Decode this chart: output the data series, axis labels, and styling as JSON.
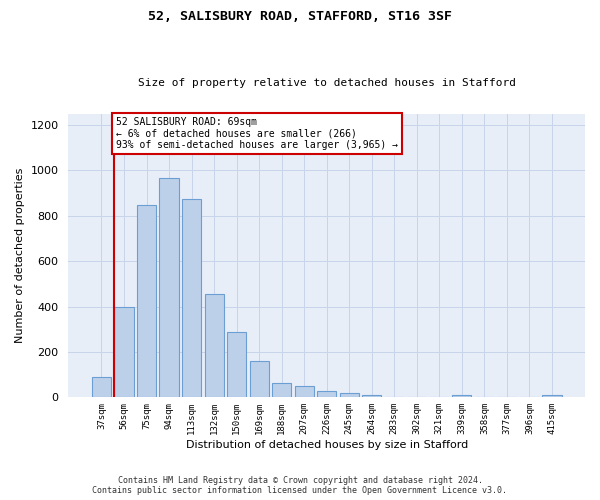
{
  "title_line1": "52, SALISBURY ROAD, STAFFORD, ST16 3SF",
  "title_line2": "Size of property relative to detached houses in Stafford",
  "xlabel": "Distribution of detached houses by size in Stafford",
  "ylabel": "Number of detached properties",
  "categories": [
    "37sqm",
    "56sqm",
    "75sqm",
    "94sqm",
    "113sqm",
    "132sqm",
    "150sqm",
    "169sqm",
    "188sqm",
    "207sqm",
    "226sqm",
    "245sqm",
    "264sqm",
    "283sqm",
    "302sqm",
    "321sqm",
    "339sqm",
    "358sqm",
    "377sqm",
    "396sqm",
    "415sqm"
  ],
  "values": [
    90,
    400,
    850,
    965,
    875,
    455,
    290,
    160,
    65,
    48,
    30,
    20,
    10,
    0,
    0,
    0,
    12,
    0,
    0,
    0,
    12
  ],
  "bar_color": "#bdd0ea",
  "bar_edge_color": "#6b9fd4",
  "annotation_box_text": "52 SALISBURY ROAD: 69sqm\n← 6% of detached houses are smaller (266)\n93% of semi-detached houses are larger (3,965) →",
  "vline_x": 1,
  "ylim": [
    0,
    1250
  ],
  "yticks": [
    0,
    200,
    400,
    600,
    800,
    1000,
    1200
  ],
  "footer_line1": "Contains HM Land Registry data © Crown copyright and database right 2024.",
  "footer_line2": "Contains public sector information licensed under the Open Government Licence v3.0.",
  "background_color": "#ffffff",
  "grid_color": "#c8d4ea",
  "plot_bg_color": "#e8eef8",
  "vline_color": "#cc0000",
  "ann_box_color": "#cc0000"
}
